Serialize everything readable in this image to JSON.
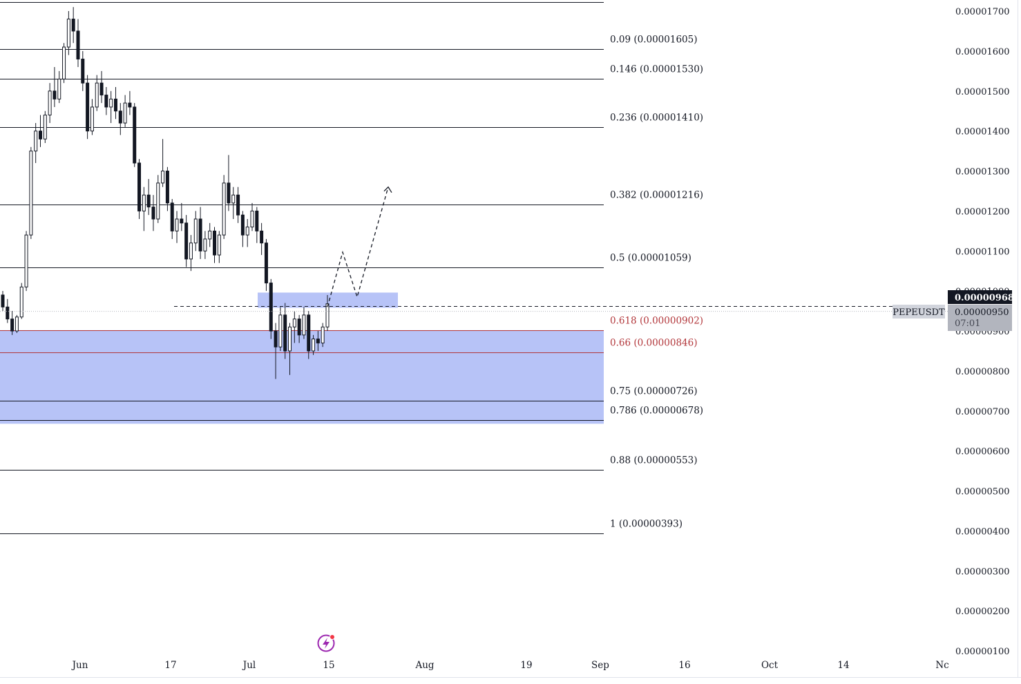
{
  "chart_data": {
    "type": "candlestick",
    "symbol": "PEPEUSDT",
    "y_axis": {
      "min": 1e-06,
      "max": 1.7e-05,
      "ticks": [
        "0.00001700",
        "0.00001600",
        "0.00001500",
        "0.00001400",
        "0.00001300",
        "0.00001200",
        "0.00001100",
        "0.00001000",
        "0.00000900",
        "0.00000800",
        "0.00000700",
        "0.00000600",
        "0.00000500",
        "0.00000400",
        "0.00000300",
        "0.00000200",
        "0.00000100"
      ]
    },
    "x_axis": {
      "ticks": [
        "Jun",
        "17",
        "Jul",
        "15",
        "Aug",
        "19",
        "Sep",
        "16",
        "Oct",
        "14",
        "Nc"
      ]
    },
    "fib_levels": [
      {
        "label": "0.09 (0.00001605)",
        "price": 1.605e-05,
        "color": "#131722"
      },
      {
        "label": "0.146 (0.00001530)",
        "price": 1.53e-05,
        "color": "#131722"
      },
      {
        "label": "0.236 (0.00001410)",
        "price": 1.41e-05,
        "color": "#131722"
      },
      {
        "label": "0.382 (0.00001216)",
        "price": 1.216e-05,
        "color": "#131722"
      },
      {
        "label": "0.5 (0.00001059)",
        "price": 1.059e-05,
        "color": "#131722"
      },
      {
        "label": "0.618 (0.00000902)",
        "price": 9.02e-06,
        "color": "#b2363a"
      },
      {
        "label": "0.66 (0.00000846)",
        "price": 8.46e-06,
        "color": "#b2363a"
      },
      {
        "label": "0.75 (0.00000726)",
        "price": 7.26e-06,
        "color": "#131722"
      },
      {
        "label": "0.786 (0.00000678)",
        "price": 6.78e-06,
        "color": "#131722"
      },
      {
        "label": "0.88 (0.00000553)",
        "price": 5.53e-06,
        "color": "#131722"
      },
      {
        "label": "1 (0.00000393)",
        "price": 3.93e-06,
        "color": "#131722"
      }
    ],
    "zones": [
      {
        "name": "fib-zone",
        "price_top": 9.02e-06,
        "price_bottom": 6.68e-06,
        "color": "#b3c0f7"
      },
      {
        "name": "resistance-zone",
        "price_top": 9.96e-06,
        "price_bottom": 9.58e-06,
        "color": "#b3c0f7"
      }
    ],
    "current_price": {
      "value": "0.00000968",
      "bg": "#131722"
    },
    "symbol_tag": {
      "price": "0.00000950",
      "countdown": "07:01",
      "bg": "#b2b5be"
    },
    "projection": [
      9.6e-06,
      1.097e-05,
      9.85e-06,
      1.26e-05
    ],
    "candles": [
      [
        9.9e-06,
        1e-05,
        9.5e-06,
        9.6e-06
      ],
      [
        9.6e-06,
        9.8e-06,
        9.2e-06,
        9.3e-06
      ],
      [
        9.3e-06,
        9.5e-06,
        8.9e-06,
        9e-06
      ],
      [
        9e-06,
        9.4e-06,
        8.95e-06,
        9.35e-06
      ],
      [
        9.35e-06,
        1.02e-05,
        9.3e-06,
        1.01e-05
      ],
      [
        1.01e-05,
        1.15e-05,
        1e-05,
        1.14e-05
      ],
      [
        1.14e-05,
        1.36e-05,
        1.13e-05,
        1.35e-05
      ],
      [
        1.35e-05,
        1.42e-05,
        1.32e-05,
        1.4e-05
      ],
      [
        1.4e-05,
        1.44e-05,
        1.36e-05,
        1.38e-05
      ],
      [
        1.38e-05,
        1.45e-05,
        1.37e-05,
        1.44e-05
      ],
      [
        1.44e-05,
        1.52e-05,
        1.42e-05,
        1.5e-05
      ],
      [
        1.5e-05,
        1.56e-05,
        1.46e-05,
        1.48e-05
      ],
      [
        1.48e-05,
        1.55e-05,
        1.47e-05,
        1.53e-05
      ],
      [
        1.53e-05,
        1.62e-05,
        1.52e-05,
        1.61e-05
      ],
      [
        1.61e-05,
        1.7e-05,
        1.59e-05,
        1.68e-05
      ],
      [
        1.68e-05,
        1.71e-05,
        1.62e-05,
        1.65e-05
      ],
      [
        1.65e-05,
        1.68e-05,
        1.56e-05,
        1.58e-05
      ],
      [
        1.58e-05,
        1.6e-05,
        1.5e-05,
        1.52e-05
      ],
      [
        1.52e-05,
        1.54e-05,
        1.38e-05,
        1.4e-05
      ],
      [
        1.4e-05,
        1.48e-05,
        1.39e-05,
        1.46e-05
      ],
      [
        1.46e-05,
        1.54e-05,
        1.45e-05,
        1.52e-05
      ],
      [
        1.52e-05,
        1.55e-05,
        1.47e-05,
        1.49e-05
      ],
      [
        1.49e-05,
        1.51e-05,
        1.44e-05,
        1.46e-05
      ],
      [
        1.46e-05,
        1.5e-05,
        1.42e-05,
        1.48e-05
      ],
      [
        1.48e-05,
        1.51e-05,
        1.43e-05,
        1.45e-05
      ],
      [
        1.45e-05,
        1.47e-05,
        1.39e-05,
        1.42e-05
      ],
      [
        1.42e-05,
        1.49e-05,
        1.41e-05,
        1.47e-05
      ],
      [
        1.47e-05,
        1.5e-05,
        1.44e-05,
        1.46e-05
      ],
      [
        1.46e-05,
        1.47e-05,
        1.31e-05,
        1.32e-05
      ],
      [
        1.32e-05,
        1.33e-05,
        1.18e-05,
        1.2e-05
      ],
      [
        1.2e-05,
        1.26e-05,
        1.15e-05,
        1.24e-05
      ],
      [
        1.24e-05,
        1.28e-05,
        1.19e-05,
        1.21e-05
      ],
      [
        1.21e-05,
        1.24e-05,
        1.15e-05,
        1.18e-05
      ],
      [
        1.18e-05,
        1.29e-05,
        1.17e-05,
        1.27e-05
      ],
      [
        1.27e-05,
        1.38e-05,
        1.26e-05,
        1.3e-05
      ],
      [
        1.3e-05,
        1.31e-05,
        1.2e-05,
        1.22e-05
      ],
      [
        1.22e-05,
        1.23e-05,
        1.13e-05,
        1.15e-05
      ],
      [
        1.15e-05,
        1.2e-05,
        1.12e-05,
        1.18e-05
      ],
      [
        1.18e-05,
        1.22e-05,
        1.15e-05,
        1.17e-05
      ],
      [
        1.17e-05,
        1.19e-05,
        1.06e-05,
        1.08e-05
      ],
      [
        1.08e-05,
        1.14e-05,
        1.05e-05,
        1.12e-05
      ],
      [
        1.12e-05,
        1.2e-05,
        1.1e-05,
        1.18e-05
      ],
      [
        1.18e-05,
        1.21e-05,
        1.08e-05,
        1.1e-05
      ],
      [
        1.1e-05,
        1.15e-05,
        1.08e-05,
        1.13e-05
      ],
      [
        1.13e-05,
        1.17e-05,
        1.11e-05,
        1.15e-05
      ],
      [
        1.15e-05,
        1.16e-05,
        1.07e-05,
        1.09e-05
      ],
      [
        1.09e-05,
        1.15e-05,
        1.07e-05,
        1.14e-05
      ],
      [
        1.14e-05,
        1.29e-05,
        1.13e-05,
        1.27e-05
      ],
      [
        1.27e-05,
        1.34e-05,
        1.2e-05,
        1.22e-05
      ],
      [
        1.22e-05,
        1.26e-05,
        1.18e-05,
        1.24e-05
      ],
      [
        1.24e-05,
        1.26e-05,
        1.17e-05,
        1.19e-05
      ],
      [
        1.19e-05,
        1.2e-05,
        1.11e-05,
        1.14e-05
      ],
      [
        1.14e-05,
        1.18e-05,
        1.11e-05,
        1.16e-05
      ],
      [
        1.16e-05,
        1.22e-05,
        1.15e-05,
        1.2e-05
      ],
      [
        1.2e-05,
        1.21e-05,
        1.12e-05,
        1.15e-05
      ],
      [
        1.15e-05,
        1.17e-05,
        1.09e-05,
        1.12e-05
      ],
      [
        1.12e-05,
        1.13e-05,
        1e-05,
        1.02e-05
      ],
      [
        1.02e-05,
        1.03e-05,
        8.8e-06,
        9e-06
      ],
      [
        9e-06,
        9.2e-06,
        7.8e-06,
        8.6e-06
      ],
      [
        8.6e-06,
        9.6e-06,
        8.5e-06,
        9.4e-06
      ],
      [
        9.4e-06,
        9.7e-06,
        8.3e-06,
        8.5e-06
      ],
      [
        8.5e-06,
        9.2e-06,
        7.9e-06,
        9.1e-06
      ],
      [
        9.1e-06,
        9.5e-06,
        8.7e-06,
        9.3e-06
      ],
      [
        9.3e-06,
        9.4e-06,
        8.7e-06,
        8.9e-06
      ],
      [
        8.9e-06,
        9.6e-06,
        8.8e-06,
        9.4e-06
      ],
      [
        9.4e-06,
        9.5e-06,
        8.3e-06,
        8.5e-06
      ],
      [
        8.5e-06,
        8.9e-06,
        8.4e-06,
        8.8e-06
      ],
      [
        8.8e-06,
        9e-06,
        8.5e-06,
        8.7e-06
      ],
      [
        8.7e-06,
        9.2e-06,
        8.6e-06,
        9.1e-06
      ],
      [
        9.1e-06,
        9.9e-06,
        9e-06,
        9.68e-06
      ]
    ]
  }
}
